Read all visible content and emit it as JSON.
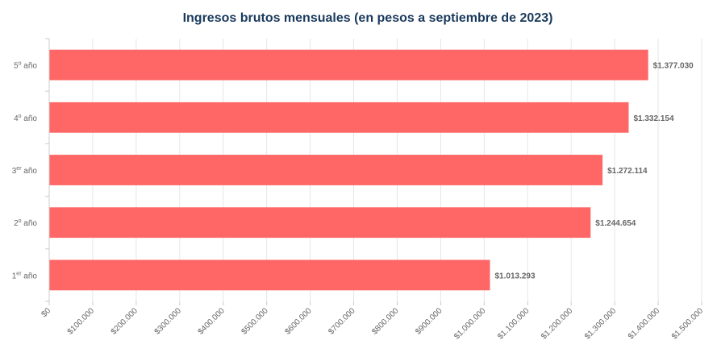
{
  "chart_data": {
    "type": "bar",
    "orientation": "horizontal",
    "title": "Ingresos brutos mensuales (en pesos a septiembre de 2023)",
    "categories": [
      {
        "base": "5",
        "sup": "o",
        "suffix": " año"
      },
      {
        "base": "4",
        "sup": "o",
        "suffix": " año"
      },
      {
        "base": "3",
        "sup": "er",
        "suffix": " año"
      },
      {
        "base": "2",
        "sup": "o",
        "suffix": " año"
      },
      {
        "base": "1",
        "sup": "er",
        "suffix": " año"
      }
    ],
    "values": [
      1377030,
      1332154,
      1272114,
      1244654,
      1013293
    ],
    "data_labels": [
      "$1.377.030",
      "$1.332.154",
      "$1.272.114",
      "$1.244.654",
      "$1.013.293"
    ],
    "xlim": [
      0,
      1500000
    ],
    "x_ticks": [
      0,
      100000,
      200000,
      300000,
      400000,
      500000,
      600000,
      700000,
      800000,
      900000,
      1000000,
      1100000,
      1200000,
      1300000,
      1400000,
      1500000
    ],
    "x_tick_labels": [
      "$0",
      "$100.000",
      "$200.000",
      "$300.000",
      "$400.000",
      "$500.000",
      "$600.000",
      "$700.000",
      "$800.000",
      "$900.000",
      "$1.000.000",
      "$1.100.000",
      "$1.200.000",
      "$1.300.000",
      "$1.400.000",
      "$1.500.000"
    ],
    "grid": "vertical",
    "colors": {
      "bar": "#ff6666",
      "title": "#1a3a5c",
      "grid": "#e6e6e6",
      "axis": "#cccccc",
      "text": "#666666"
    }
  }
}
